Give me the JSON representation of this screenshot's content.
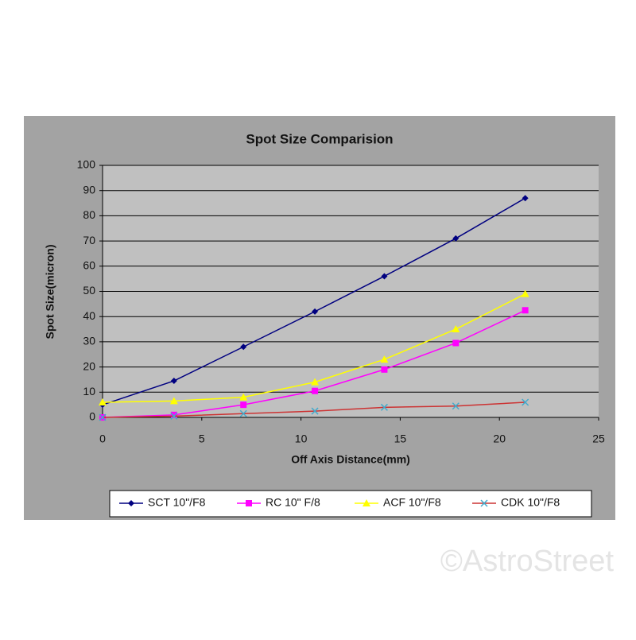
{
  "chart_data": {
    "type": "line",
    "title": "Spot Size Comparision",
    "x_label": "Off Axis Distance(mm)",
    "y_label": "Spot Size(micron)",
    "x": [
      0,
      3.6,
      7.1,
      10.7,
      14.2,
      17.8,
      21.3
    ],
    "series": [
      {
        "name": "SCT 10\"/F8",
        "color": "#000080",
        "marker": "diamond",
        "values": [
          5,
          14.5,
          28,
          42,
          56,
          71,
          87
        ]
      },
      {
        "name": "RC 10\" F/8",
        "color": "#ff00ff",
        "marker": "square",
        "values": [
          0,
          1,
          5,
          10.5,
          19,
          29.5,
          42.5
        ]
      },
      {
        "name": "ACF 10\"/F8",
        "color": "#ffff00",
        "marker": "triangle",
        "values": [
          6,
          6.5,
          8,
          14,
          23,
          35,
          49
        ]
      },
      {
        "name": "CDK 10\"/F8",
        "color": "#cc3333",
        "marker": "x",
        "values": [
          0,
          0.5,
          1.5,
          2.5,
          4,
          4.5,
          6
        ]
      }
    ],
    "xlim": [
      0,
      25
    ],
    "xticks": [
      0,
      5,
      10,
      15,
      20,
      25
    ],
    "ylim": [
      0,
      100
    ],
    "yticks": [
      0,
      10,
      20,
      30,
      40,
      50,
      60,
      70,
      80,
      90,
      100
    ],
    "grid": true,
    "legend": "bottom"
  },
  "watermark": "©AstroStreet"
}
